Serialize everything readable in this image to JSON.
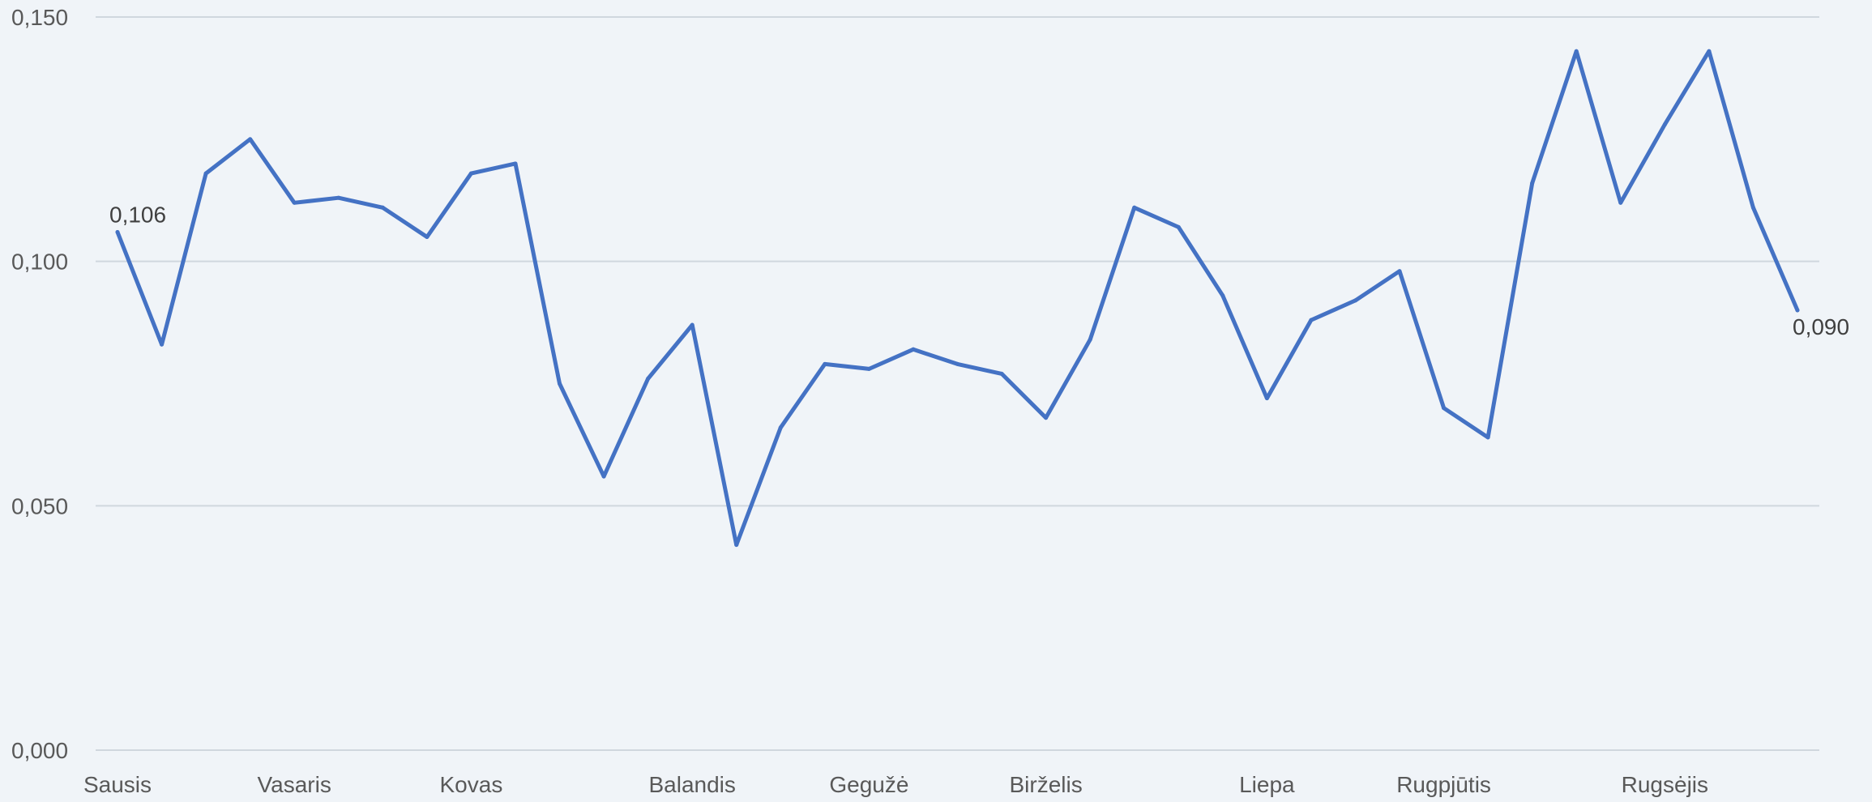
{
  "chart_data": {
    "type": "line",
    "title": "",
    "xlabel": "",
    "ylabel": "",
    "ylim": [
      0,
      0.15
    ],
    "yticks": [
      {
        "value": 0.0,
        "label": "0,000"
      },
      {
        "value": 0.05,
        "label": "0,050"
      },
      {
        "value": 0.1,
        "label": "0,100"
      },
      {
        "value": 0.15,
        "label": "0,150"
      }
    ],
    "x_tick_labels": [
      {
        "index": 0,
        "label": "Sausis"
      },
      {
        "index": 4,
        "label": "Vasaris"
      },
      {
        "index": 8,
        "label": "Kovas"
      },
      {
        "index": 13,
        "label": "Balandis"
      },
      {
        "index": 17,
        "label": "Gegužė"
      },
      {
        "index": 21,
        "label": "Birželis"
      },
      {
        "index": 26,
        "label": "Liepa"
      },
      {
        "index": 30,
        "label": "Rugpjūtis"
      },
      {
        "index": 35,
        "label": "Rugsėjis"
      }
    ],
    "grid": true,
    "line_color": "#4472c4",
    "series": [
      {
        "values": [
          0.106,
          0.083,
          0.118,
          0.125,
          0.112,
          0.113,
          0.111,
          0.105,
          0.118,
          0.12,
          0.075,
          0.056,
          0.076,
          0.087,
          0.042,
          0.066,
          0.079,
          0.078,
          0.082,
          0.079,
          0.077,
          0.068,
          0.084,
          0.111,
          0.107,
          0.093,
          0.072,
          0.088,
          0.092,
          0.098,
          0.07,
          0.064,
          0.116,
          0.143,
          0.112,
          0.128,
          0.143,
          0.111,
          0.09
        ]
      }
    ],
    "data_labels": [
      {
        "index": 0,
        "label": "0,106"
      },
      {
        "index": 38,
        "label": "0,090"
      }
    ]
  }
}
